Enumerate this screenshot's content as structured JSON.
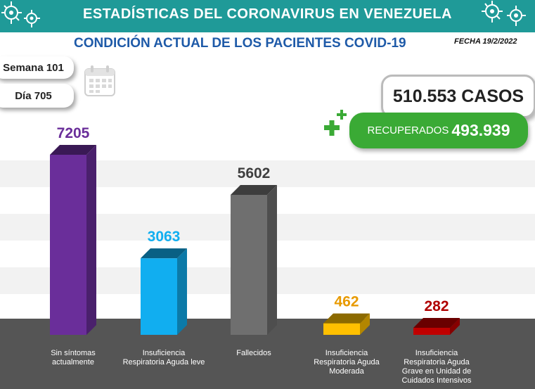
{
  "header": {
    "title": "ESTADÍSTICAS DEL CORONAVIRUS EN VENEZUELA"
  },
  "subtitle": "CONDICIÓN ACTUAL DE LOS PACIENTES COVID-19",
  "date": "FECHA 19/2/2022",
  "week": "Semana 101",
  "day": "Día 705",
  "cases": "510.553 CASOS",
  "recovered": {
    "label": "RECUPERADOS",
    "value": "493.939"
  },
  "colors": {
    "header": "#1f9a98",
    "subtitle": "#1e5aa8",
    "recovered": "#3aaa35",
    "base": "#555555"
  },
  "chart_data": {
    "type": "bar",
    "categories": [
      "Sin síntomas actualmente",
      "Insuficiencia Respiratoria Aguda leve",
      "Fallecidos",
      "Insuficiencia Respiratoria Aguda Moderada",
      "Insuficiencia Respiratoria Aguda Grave en Unidad de Cuidados Intensivos"
    ],
    "values": [
      7205,
      3063,
      5602,
      462,
      282
    ],
    "value_labels": [
      "7205",
      "3063",
      "5602",
      "462",
      "282"
    ],
    "colors": [
      "#6a2e9a",
      "#11aef0",
      "#6f6f6f",
      "#ffc000",
      "#c00000"
    ],
    "label_colors": [
      "#6a2e9a",
      "#11aef0",
      "#3f3f3f",
      "#e89a00",
      "#b00000"
    ]
  }
}
